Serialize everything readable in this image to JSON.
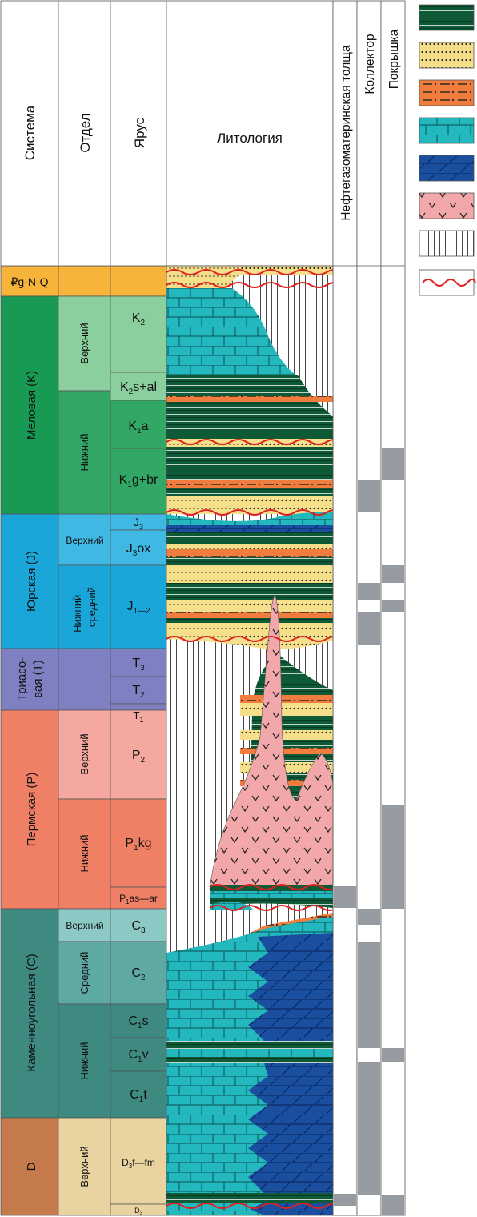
{
  "headers": {
    "system": "Система",
    "series": "Отдел",
    "stage": "Ярус",
    "lithology": "Литология",
    "source_rock": "Нефтегазоматеринская толща",
    "reservoir": "Коллектор",
    "seal": "Покрышка"
  },
  "systems": [
    {
      "label": "₽g-N-Q"
    },
    {
      "label": "Меловая (K)"
    },
    {
      "label": "Юрская (J)"
    },
    {
      "label": "Триасо-"
    },
    {
      "label": "вая (T)"
    },
    {
      "label": "Пермская (P)"
    },
    {
      "label": "Каменноугольная (C)"
    },
    {
      "label": "D"
    }
  ],
  "series_labels": [
    {
      "label": "Верхний"
    },
    {
      "label": "Нижний"
    },
    {
      "label": "Верхний"
    },
    {
      "label": "Нижний —"
    },
    {
      "label": "средний"
    },
    {
      "label": "Верхний"
    },
    {
      "label": "Нижний"
    },
    {
      "label": "Верхний"
    },
    {
      "label": "Средний"
    },
    {
      "label": "Нижний"
    },
    {
      "label": "Верхний"
    }
  ],
  "stages": [
    {
      "base": "K",
      "sub": "2",
      "rest": ""
    },
    {
      "base": "K",
      "sub": "2",
      "rest": "s+al"
    },
    {
      "base": "K",
      "sub": "1",
      "rest": "a"
    },
    {
      "base": "K",
      "sub": "1",
      "rest": "g+br"
    },
    {
      "base": "J",
      "sub": "3",
      "rest": ""
    },
    {
      "base": "J",
      "sub": "3",
      "rest": "ox"
    },
    {
      "base": "J",
      "sub": "1—2",
      "rest": ""
    },
    {
      "base": "T",
      "sub": "3",
      "rest": ""
    },
    {
      "base": "T",
      "sub": "2",
      "rest": ""
    },
    {
      "base": "T",
      "sub": "1",
      "rest": ""
    },
    {
      "base": "P",
      "sub": "2",
      "rest": ""
    },
    {
      "base": "P",
      "sub": "1",
      "rest": "kg"
    },
    {
      "base": "P",
      "sub": "1",
      "rest": "as—ar"
    },
    {
      "base": "C",
      "sub": "3",
      "rest": ""
    },
    {
      "base": "C",
      "sub": "2",
      "rest": ""
    },
    {
      "base": "C",
      "sub": "1",
      "rest": "s"
    },
    {
      "base": "C",
      "sub": "1",
      "rest": "v"
    },
    {
      "base": "C",
      "sub": "1",
      "rest": "t"
    },
    {
      "base": "D",
      "sub": "3",
      "rest": "f—fm"
    },
    {
      "base": "D",
      "sub": "3",
      "rest": ""
    }
  ],
  "colors": {
    "paleogene": "#f6b43a",
    "cretaceous_system": "#189a55",
    "cretaceous_upper": "#8ccf9e",
    "cretaceous_lower": "#33a866",
    "cretaceous_stage": "#8ccf9e",
    "jurassic": "#1aa6d8",
    "jurassic_stage": "#3fb9e3",
    "triassic": "#7f80c2",
    "permian_system": "#ef8066",
    "permian_upper": "#f4a8a0",
    "permian_lower": "#ef8066",
    "carboniferous": "#3e8a80",
    "carboniferous_stage": "#8cc8c4",
    "devonian_system": "#c47a4a",
    "devonian_stage": "#e9d3a0",
    "mudstone": "#0f5a36",
    "sandstone": "#f6df8a",
    "siltstone": "#f07c3e",
    "limestone": "#22b8bd",
    "dolomite": "#1a4fa0",
    "volcanic": "#f2a7aa",
    "unconformity": "#e02020",
    "gray_bar": "#959ba0"
  },
  "legend_icons": [
    "mudstone-icon",
    "sandstone-icon",
    "siltstone-icon",
    "limestone-icon",
    "dolomite-icon",
    "volcanic-icon",
    "hiatus-icon",
    "unconformity-icon"
  ]
}
